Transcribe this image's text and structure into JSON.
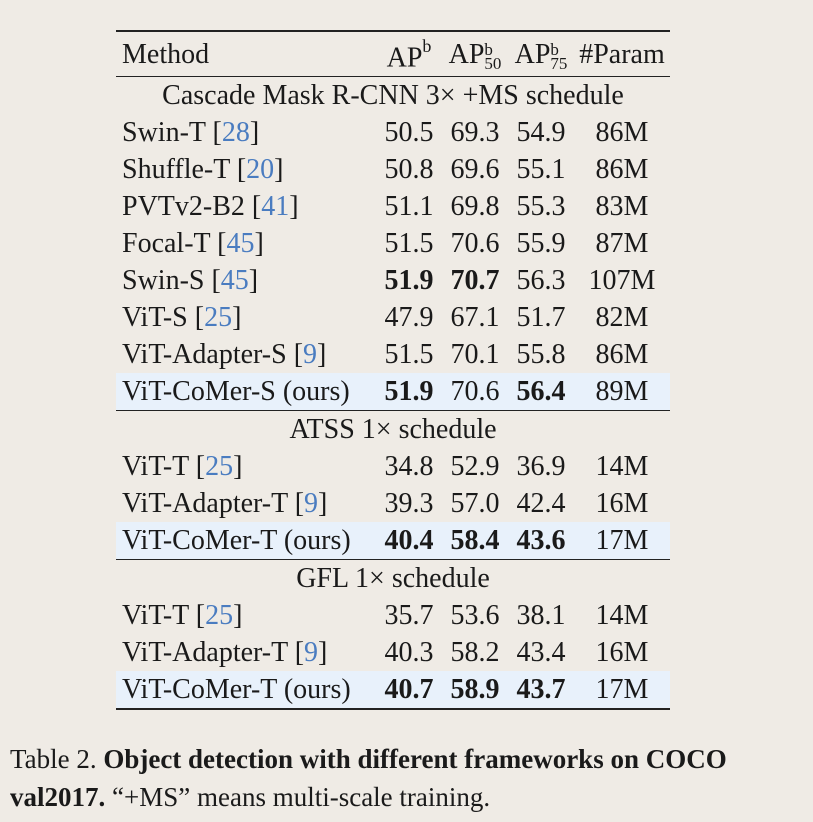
{
  "header": {
    "method": "Method",
    "ap": "AP",
    "ap_sup": "b",
    "ap50_sup": "b",
    "ap50_sub": "50",
    "ap75_sup": "b",
    "ap75_sub": "75",
    "param": "#Param"
  },
  "sections": [
    {
      "title": "Cascade Mask R-CNN 3× +MS schedule",
      "rows": [
        {
          "name": "Swin-T",
          "cite": "28",
          "ap": "50.5",
          "ap50": "69.3",
          "ap75": "54.9",
          "param": "86M"
        },
        {
          "name": "Shuffle-T",
          "cite": "20",
          "ap": "50.8",
          "ap50": "69.6",
          "ap75": "55.1",
          "param": "86M"
        },
        {
          "name": "PVTv2-B2",
          "cite": "41",
          "ap": "51.1",
          "ap50": "69.8",
          "ap75": "55.3",
          "param": "83M"
        },
        {
          "name": "Focal-T",
          "cite": "45",
          "ap": "51.5",
          "ap50": "70.6",
          "ap75": "55.9",
          "param": "87M"
        },
        {
          "name": "Swin-S",
          "cite": "45",
          "ap": "51.9",
          "ap50": "70.7",
          "ap75": "56.3",
          "param": "107M"
        },
        {
          "name": "ViT-S",
          "cite": "25",
          "ap": "47.9",
          "ap50": "67.1",
          "ap75": "51.7",
          "param": "82M"
        },
        {
          "name": "ViT-Adapter-S",
          "cite": "9",
          "ap": "51.5",
          "ap50": "70.1",
          "ap75": "55.8",
          "param": "86M"
        },
        {
          "name": "ViT-CoMer-S (ours)",
          "cite": "",
          "ap": "51.9",
          "ap50": "70.6",
          "ap75": "56.4",
          "param": "89M"
        }
      ]
    },
    {
      "title": "ATSS 1× schedule",
      "rows": [
        {
          "name": "ViT-T",
          "cite": "25",
          "ap": "34.8",
          "ap50": "52.9",
          "ap75": "36.9",
          "param": "14M"
        },
        {
          "name": "ViT-Adapter-T",
          "cite": "9",
          "ap": "39.3",
          "ap50": "57.0",
          "ap75": "42.4",
          "param": "16M"
        },
        {
          "name": "ViT-CoMer-T (ours)",
          "cite": "",
          "ap": "40.4",
          "ap50": "58.4",
          "ap75": "43.6",
          "param": "17M"
        }
      ]
    },
    {
      "title": "GFL 1× schedule",
      "rows": [
        {
          "name": "ViT-T",
          "cite": "25",
          "ap": "35.7",
          "ap50": "53.6",
          "ap75": "38.1",
          "param": "14M"
        },
        {
          "name": "ViT-Adapter-T",
          "cite": "9",
          "ap": "40.3",
          "ap50": "58.2",
          "ap75": "43.4",
          "param": "16M"
        },
        {
          "name": "ViT-CoMer-T (ours)",
          "cite": "",
          "ap": "40.7",
          "ap50": "58.9",
          "ap75": "43.7",
          "param": "17M"
        }
      ]
    }
  ],
  "caption": {
    "label": "Table 2.",
    "bold": "Object detection with different frameworks on COCO val2017.",
    "rest": "“+MS” means multi-scale training."
  }
}
